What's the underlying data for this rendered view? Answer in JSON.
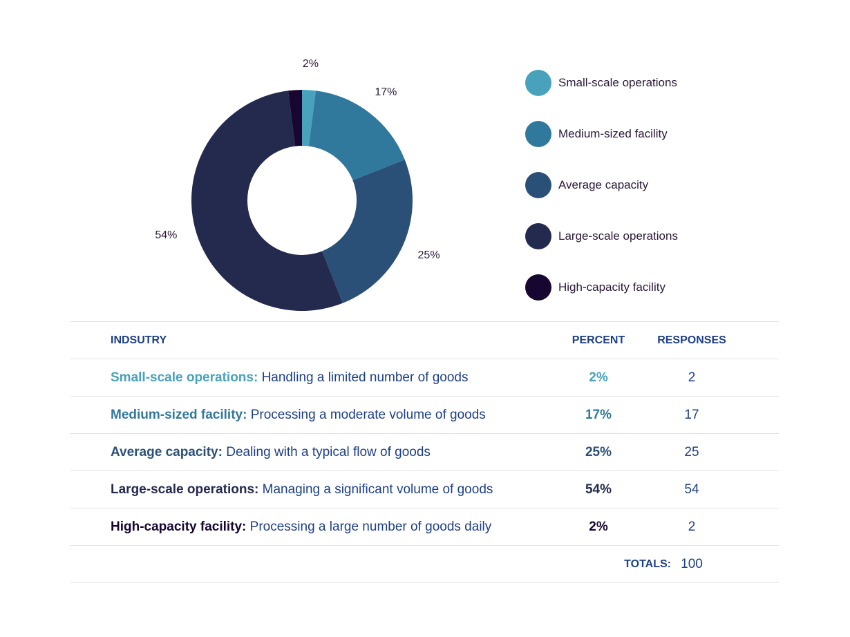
{
  "chart_data": {
    "type": "pie",
    "donut": true,
    "categories": [
      "Small-scale operations",
      "Medium-sized facility",
      "Average capacity",
      "Large-scale operations",
      "High-capacity facility"
    ],
    "values": [
      2,
      17,
      25,
      54,
      2
    ],
    "labels": [
      "2%",
      "17%",
      "25%",
      "54%",
      ""
    ],
    "colors": [
      "#48a2bb",
      "#30789c",
      "#2a5078",
      "#242a4e",
      "#170630"
    ],
    "legend_position": "right"
  },
  "legend": {
    "items": [
      {
        "label": "Small-scale operations",
        "color": "#48a2bb"
      },
      {
        "label": "Medium-sized facility",
        "color": "#30789c"
      },
      {
        "label": "Average capacity",
        "color": "#2a5078"
      },
      {
        "label": "Large-scale operations",
        "color": "#242a4e"
      },
      {
        "label": "High-capacity facility",
        "color": "#170630"
      }
    ]
  },
  "table": {
    "headers": {
      "industry": "INDSUTRY",
      "percent": "PERCENT",
      "responses": "RESPONSES"
    },
    "rows": [
      {
        "name": "Small-scale operations:",
        "description": " Handling a limited number of goods",
        "percent": "2%",
        "responses": "2",
        "color": "#48a2bb"
      },
      {
        "name": "Medium-sized facility:",
        "description": " Processing a moderate volume of goods",
        "percent": "17%",
        "responses": "17",
        "color": "#30789c"
      },
      {
        "name": "Average capacity:",
        "description": " Dealing with a typical flow of goods",
        "percent": "25%",
        "responses": "25",
        "color": "#2a5078"
      },
      {
        "name": "Large-scale operations:",
        "description": " Managing a significant volume of goods",
        "percent": "54%",
        "responses": "54",
        "color": "#242a4e"
      },
      {
        "name": "High-capacity facility:",
        "description": " Processing a large number of goods daily",
        "percent": "2%",
        "responses": "2",
        "color": "#170630"
      }
    ],
    "totals": {
      "label": "TOTALS:",
      "value": "100"
    }
  }
}
